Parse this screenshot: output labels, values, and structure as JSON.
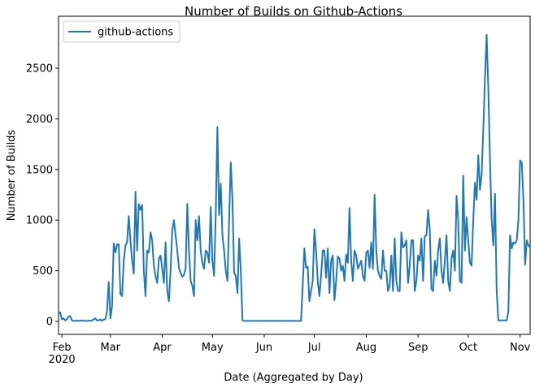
{
  "chart_data": {
    "type": "line",
    "title": "Number of Builds on Github-Actions",
    "x_label": "Date (Aggregated by Day)",
    "y_label": "Number of Builds",
    "legend": "upper left",
    "xlim": [
      0,
      282
    ],
    "xticks": [
      {
        "value": 2,
        "label": "Feb\n2020"
      },
      {
        "value": 31,
        "label": "Mar"
      },
      {
        "value": 62,
        "label": "Apr"
      },
      {
        "value": 92,
        "label": "May"
      },
      {
        "value": 123,
        "label": "Jun"
      },
      {
        "value": 153,
        "label": "Jul"
      },
      {
        "value": 184,
        "label": "Aug"
      },
      {
        "value": 215,
        "label": "Sep"
      },
      {
        "value": 245,
        "label": "Oct"
      },
      {
        "value": 276,
        "label": "Nov"
      }
    ],
    "ylim": [
      -128,
      3013
    ],
    "yticks": [
      0,
      500,
      1000,
      1500,
      2000,
      2500
    ],
    "series": [
      {
        "name": "github-actions",
        "color": "#1f77b4",
        "values": [
          80,
          90,
          20,
          30,
          10,
          20,
          50,
          50,
          10,
          5,
          5,
          10,
          5,
          5,
          10,
          5,
          5,
          5,
          10,
          5,
          10,
          20,
          30,
          10,
          10,
          20,
          5,
          20,
          20,
          100,
          390,
          30,
          150,
          770,
          680,
          760,
          760,
          270,
          250,
          600,
          750,
          780,
          1040,
          800,
          600,
          470,
          1280,
          700,
          1160,
          1100,
          1150,
          500,
          250,
          700,
          680,
          880,
          800,
          550,
          450,
          380,
          620,
          650,
          520,
          380,
          780,
          300,
          200,
          500,
          900,
          1000,
          850,
          700,
          530,
          480,
          440,
          460,
          520,
          1160,
          700,
          400,
          350,
          250,
          1000,
          800,
          1040,
          700,
          580,
          520,
          700,
          680,
          580,
          1130,
          600,
          450,
          1050,
          1920,
          1050,
          1360,
          850,
          700,
          500,
          400,
          1000,
          1570,
          1200,
          480,
          450,
          280,
          820,
          500,
          10,
          5,
          5,
          5,
          5,
          5,
          5,
          5,
          5,
          5,
          5,
          5,
          5,
          5,
          5,
          5,
          5,
          5,
          5,
          5,
          5,
          5,
          5,
          5,
          5,
          5,
          5,
          5,
          5,
          5,
          5,
          5,
          5,
          5,
          5,
          5,
          350,
          720,
          530,
          540,
          200,
          300,
          400,
          910,
          700,
          400,
          250,
          450,
          700,
          700,
          430,
          720,
          280,
          600,
          650,
          210,
          400,
          640,
          620,
          500,
          550,
          400,
          660,
          580,
          1120,
          600,
          400,
          700,
          650,
          520,
          560,
          600,
          450,
          400,
          680,
          700,
          530,
          780,
          520,
          1250,
          700,
          500,
          450,
          420,
          700,
          500,
          500,
          300,
          350,
          650,
          300,
          820,
          400,
          300,
          300,
          880,
          730,
          750,
          800,
          380,
          550,
          800,
          800,
          300,
          400,
          650,
          600,
          820,
          400,
          840,
          850,
          1100,
          900,
          320,
          300,
          600,
          450,
          700,
          820,
          500,
          380,
          600,
          850,
          400,
          300,
          620,
          700,
          500,
          1240,
          1000,
          400,
          380,
          1440,
          700,
          1030,
          800,
          580,
          550,
          1000,
          1370,
          1200,
          1640,
          1300,
          1450,
          1900,
          2400,
          2830,
          2300,
          1600,
          1000,
          750,
          1260,
          300,
          10,
          10,
          10,
          10,
          10,
          10,
          100,
          850,
          720,
          780,
          770,
          800,
          1000,
          1590,
          1570,
          1200,
          560,
          800,
          750,
          730
        ]
      }
    ]
  }
}
